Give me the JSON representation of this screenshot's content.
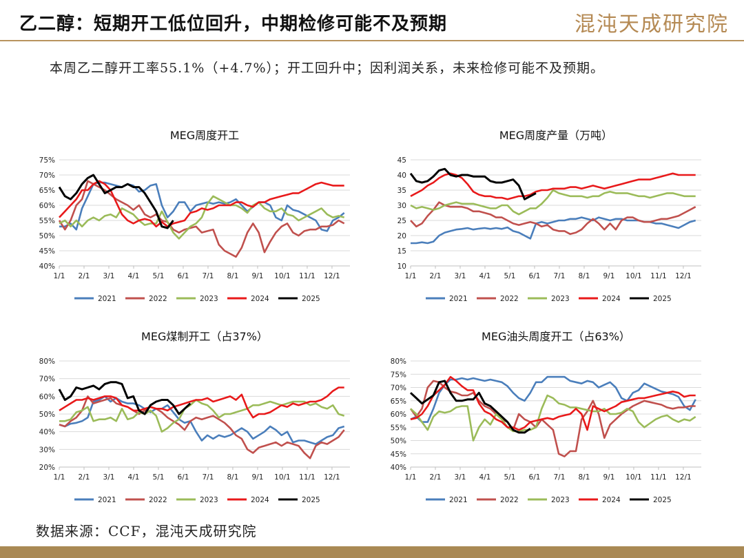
{
  "header": {
    "title": "乙二醇：短期开工低位回升，中期检修可能不及预期",
    "logo": "混沌天成研究院"
  },
  "summary": "本周乙二醇开工率55.1%（+4.7%）；开工回升中；因利润关系，未来检修可能不及预期。",
  "source": "数据来源：CCF，混沌天成研究院",
  "colors": {
    "2021": "#4a7ebb",
    "2022": "#c0504d",
    "2023": "#9bbb59",
    "2024": "#e8191a",
    "2025": "#000000",
    "accent": "#b8935e"
  },
  "chart_data": [
    {
      "type": "line",
      "title": "MEG周度开工",
      "x_ticks": [
        "1/1",
        "2/1",
        "3/1",
        "4/1",
        "5/1",
        "6/1",
        "7/1",
        "8/1",
        "9/1",
        "10/1",
        "11/1",
        "12/1"
      ],
      "y_ticks": [
        "40%",
        "45%",
        "50%",
        "55%",
        "60%",
        "65%",
        "70%",
        "75%"
      ],
      "ylim": [
        40,
        75
      ],
      "grid": true,
      "legend": "bottom",
      "series": [
        {
          "name": "2021",
          "values": [
            53,
            53,
            54,
            52,
            59,
            63,
            67,
            67.5,
            67.5,
            67,
            66.5,
            66,
            67,
            66.5,
            64.5,
            65,
            66.5,
            67,
            60,
            56,
            58,
            61,
            61,
            58,
            60,
            60.5,
            61,
            60.5,
            61,
            60.5,
            61,
            62,
            60,
            58,
            59.5,
            61,
            61,
            60,
            56,
            55,
            60,
            58.5,
            58,
            57,
            56,
            55,
            52,
            51.5,
            55,
            56,
            57.5
          ]
        },
        {
          "name": "2022",
          "values": [
            55,
            52,
            55,
            60,
            62,
            68,
            67,
            66,
            65,
            63.5,
            62,
            61,
            60,
            58.5,
            60,
            57,
            56,
            57,
            55,
            54.5,
            52,
            51,
            52,
            52.5,
            53,
            51,
            51.5,
            52,
            47,
            45,
            44,
            43,
            46,
            51,
            54,
            51,
            44.5,
            48,
            51,
            53,
            54,
            51,
            50,
            51.5,
            52,
            52,
            53,
            53,
            53.5,
            55,
            54
          ]
        },
        {
          "name": "2023",
          "values": [
            54,
            55,
            53,
            55,
            53,
            55,
            56,
            55,
            56.5,
            57,
            56,
            59,
            58,
            57,
            55,
            53.5,
            54,
            54,
            58,
            54.5,
            51,
            49,
            51,
            53,
            54,
            56,
            60.5,
            63,
            62,
            61,
            60,
            60,
            59,
            57.5,
            60,
            61,
            59,
            58,
            58,
            59,
            57,
            56.5,
            55,
            56,
            57,
            58,
            59,
            57,
            56,
            56.5,
            56
          ]
        },
        {
          "name": "2024",
          "values": [
            56,
            58,
            60,
            62,
            65,
            65,
            67,
            68,
            67,
            65,
            61,
            57,
            55,
            54,
            55,
            55.5,
            55,
            53,
            54.5,
            53,
            54,
            54.5,
            55,
            57.5,
            58,
            59,
            58.5,
            59,
            60,
            60,
            60,
            61,
            61,
            60,
            59.5,
            61,
            61,
            62,
            62.5,
            63,
            63.5,
            64,
            64,
            65,
            66,
            67,
            67.5,
            67,
            66.5,
            66.5,
            66.5
          ]
        },
        {
          "name": "2025",
          "values": [
            66,
            63,
            62,
            64,
            67,
            69,
            70,
            67,
            64,
            65,
            66,
            66,
            67,
            66,
            66,
            64,
            61,
            58,
            53,
            52.5,
            55
          ]
        }
      ]
    },
    {
      "type": "line",
      "title": "MEG周度产量（万吨）",
      "x_ticks": [
        "1/1",
        "2/1",
        "3/1",
        "4/1",
        "5/1",
        "6/1",
        "7/1",
        "8/1",
        "9/1",
        "10/1",
        "11/1",
        "12/1"
      ],
      "y_ticks": [
        "10",
        "15",
        "20",
        "25",
        "30",
        "35",
        "40",
        "45"
      ],
      "ylim": [
        10,
        45
      ],
      "grid": true,
      "legend": "bottom",
      "series": [
        {
          "name": "2021",
          "values": [
            17.5,
            17.5,
            17.8,
            17.5,
            18,
            20,
            21,
            21.5,
            22,
            22.2,
            22.5,
            22,
            22.3,
            22.5,
            22.2,
            22.5,
            22.2,
            22.7,
            21.5,
            21,
            20,
            19,
            24,
            24.5,
            24,
            24.5,
            25,
            25,
            25.5,
            25.5,
            26,
            25.5,
            25,
            26,
            25.5,
            25,
            25.5,
            25.5,
            25,
            25,
            25,
            24.5,
            24.5,
            24,
            24,
            23.5,
            23,
            22.5,
            23.5,
            24.5,
            25
          ]
        },
        {
          "name": "2022",
          "values": [
            25,
            23,
            24,
            26.5,
            28.5,
            31,
            30,
            29.5,
            29.5,
            29.5,
            29,
            28,
            28,
            27.5,
            27,
            26,
            26,
            25,
            24,
            23.5,
            24,
            24.5,
            24,
            23,
            23.5,
            22,
            21.5,
            21.5,
            20.5,
            21,
            22,
            24,
            25.5,
            24,
            22,
            24,
            22,
            25,
            26,
            26,
            25,
            24.5,
            24.5,
            25,
            25.5,
            25.5,
            26,
            26.5,
            27.5,
            28.5,
            29.5
          ]
        },
        {
          "name": "2023",
          "values": [
            30,
            29,
            29.5,
            29,
            28.5,
            29,
            30,
            30.5,
            31,
            30.5,
            30.5,
            30.5,
            30,
            29.5,
            29,
            29,
            30,
            30,
            28,
            27,
            28,
            29,
            29,
            30.5,
            32.5,
            35,
            34,
            33.5,
            33,
            33,
            33,
            32.5,
            33,
            33,
            34,
            34.5,
            34,
            34,
            34,
            33.5,
            33,
            33,
            32.5,
            33,
            33.5,
            34,
            34,
            33.5,
            33,
            33,
            33
          ]
        },
        {
          "name": "2024",
          "values": [
            33,
            34,
            35,
            36.5,
            37.5,
            39,
            40,
            40.5,
            40,
            39,
            37,
            34.5,
            33.5,
            33,
            33,
            32.5,
            32.5,
            32,
            32.5,
            33,
            33,
            33.5,
            34.5,
            35,
            35,
            35.5,
            35.5,
            35.5,
            36,
            36,
            35.5,
            36,
            36.5,
            36,
            35.5,
            36,
            36.5,
            37,
            37.5,
            38,
            38.5,
            38.5,
            38.5,
            39,
            39.5,
            40,
            40.5,
            40,
            40,
            40,
            40
          ]
        },
        {
          "name": "2025",
          "values": [
            40.5,
            38,
            37.5,
            38,
            39.5,
            41.5,
            42,
            40,
            39.5,
            40,
            40,
            39.5,
            39.5,
            39.5,
            38,
            37.5,
            37.5,
            38,
            38.5,
            36.5,
            32,
            33,
            34
          ]
        }
      ]
    },
    {
      "type": "line",
      "title": "MEG煤制开工（占37%）",
      "x_ticks": [
        "1/1",
        "2/1",
        "3/1",
        "4/1",
        "5/1",
        "6/1",
        "7/1",
        "8/1",
        "9/1",
        "10/1",
        "11/1",
        "12/1"
      ],
      "y_ticks": [
        "20%",
        "30%",
        "40%",
        "50%",
        "60%",
        "70%",
        "80%"
      ],
      "ylim": [
        20,
        80
      ],
      "grid": true,
      "legend": "bottom",
      "series": [
        {
          "name": "2021",
          "values": [
            44,
            43,
            44.5,
            45,
            46,
            48,
            57,
            58,
            60,
            57,
            59,
            57,
            56,
            56,
            55,
            53,
            51,
            53,
            53,
            55,
            51,
            47,
            45,
            46,
            40,
            35,
            38,
            36,
            38,
            37,
            38,
            40,
            42,
            40,
            36,
            38,
            40,
            43,
            41,
            38,
            40,
            34,
            35,
            35,
            34,
            33,
            35,
            37,
            38,
            42,
            43
          ]
        },
        {
          "name": "2022",
          "values": [
            44,
            43,
            46,
            48,
            52,
            60,
            56,
            57,
            58,
            59,
            56,
            55,
            54,
            52,
            50,
            52,
            54,
            53,
            51,
            48,
            46,
            44,
            41,
            46,
            48,
            47,
            48,
            49,
            47,
            45,
            42,
            38,
            36,
            30,
            28,
            31,
            32,
            33,
            34,
            32,
            34,
            33,
            32,
            28,
            25,
            32,
            34,
            33,
            35,
            37,
            41
          ]
        },
        {
          "name": "2023",
          "values": [
            46,
            46,
            47,
            51,
            52,
            54,
            46,
            47,
            47,
            48,
            46,
            53,
            47,
            48,
            51,
            50,
            52,
            49,
            40,
            42,
            45,
            47,
            53,
            55,
            58,
            56,
            55,
            52,
            48,
            50,
            50,
            51,
            52,
            53,
            55,
            55,
            56,
            57,
            56,
            55,
            56,
            57,
            57,
            57,
            55,
            56,
            54,
            53,
            55,
            50,
            49
          ]
        },
        {
          "name": "2024",
          "values": [
            52,
            54,
            56,
            58,
            58,
            59,
            58,
            59,
            60,
            60,
            59,
            55,
            54,
            52,
            52,
            53,
            54,
            53,
            53,
            52,
            54,
            55,
            56,
            57,
            58,
            58,
            59,
            57,
            58,
            59,
            60,
            58,
            61,
            53,
            48,
            50,
            50,
            51,
            53,
            55,
            54,
            56,
            55,
            56,
            57,
            57,
            58,
            60,
            63,
            65,
            65
          ]
        },
        {
          "name": "2025",
          "values": [
            64,
            58,
            60,
            65,
            64,
            65,
            66,
            64,
            67,
            68,
            68,
            67,
            59,
            60,
            52,
            50,
            55,
            57,
            58,
            58,
            55,
            50,
            53,
            56
          ]
        }
      ]
    },
    {
      "type": "line",
      "title": "MEG油头周度开工（占63%）",
      "x_ticks": [
        "1/1",
        "2/1",
        "3/1",
        "4/1",
        "5/1",
        "6/1",
        "7/1",
        "8/1",
        "9/1",
        "10/1",
        "11/1",
        "12/1"
      ],
      "y_ticks": [
        "40%",
        "45%",
        "50%",
        "55%",
        "60%",
        "65%",
        "70%",
        "75%",
        "80%"
      ],
      "ylim": [
        40,
        80
      ],
      "grid": true,
      "legend": "bottom",
      "series": [
        {
          "name": "2021",
          "values": [
            58,
            59,
            57,
            57,
            62,
            68,
            71,
            73,
            73,
            73.5,
            73,
            73.5,
            73,
            72.5,
            73,
            72.5,
            72,
            70.5,
            68,
            66,
            65,
            68,
            72,
            72,
            74,
            74,
            74,
            74,
            72.5,
            72,
            71.5,
            72.5,
            72,
            70,
            71,
            72,
            70,
            66,
            65,
            68,
            69,
            71.5,
            70.5,
            69.5,
            68.5,
            68,
            67.5,
            66.5,
            63,
            61.5,
            65.5
          ]
        },
        {
          "name": "2022",
          "values": [
            62,
            59,
            62,
            70,
            72.5,
            72,
            70,
            68.5,
            68,
            67,
            67,
            68,
            65,
            63,
            62,
            60,
            58,
            57,
            54,
            60,
            58,
            57,
            55,
            58,
            56,
            54,
            45,
            44,
            46,
            46,
            58,
            61,
            65,
            60,
            51,
            56,
            58,
            60,
            61.5,
            63,
            64,
            65,
            64.5,
            64,
            63.5,
            62.5,
            62,
            62.5,
            62.5,
            63,
            63
          ]
        },
        {
          "name": "2023",
          "values": [
            62,
            60,
            57,
            54,
            59,
            61,
            60.5,
            61,
            62.5,
            63,
            63,
            50,
            55,
            58,
            56,
            60,
            58,
            55,
            53.5,
            53.5,
            54,
            54,
            55,
            62,
            67,
            66,
            64,
            63.5,
            62.5,
            62.5,
            62,
            61.5,
            61,
            61,
            62,
            60,
            60,
            60.5,
            62,
            61,
            57,
            55,
            56.5,
            58,
            59,
            59.5,
            58,
            57,
            58,
            57.5,
            59
          ]
        },
        {
          "name": "2024",
          "values": [
            58,
            58.5,
            60,
            63,
            67,
            69,
            71,
            74,
            72.5,
            70.5,
            69,
            69,
            64,
            61,
            60,
            58,
            57,
            55,
            55,
            54,
            55,
            57,
            57.5,
            58,
            58.5,
            58,
            59,
            59.5,
            60,
            62,
            60,
            54,
            63,
            62,
            61,
            62,
            63,
            64.5,
            65,
            65.5,
            66,
            66,
            66.5,
            67,
            67.5,
            68,
            68.5,
            68,
            66.5,
            67,
            67
          ]
        },
        {
          "name": "2025",
          "values": [
            68,
            66,
            64,
            65.5,
            67,
            72,
            72.5,
            68,
            65,
            65,
            65.5,
            65.5,
            68,
            64,
            63,
            61,
            59,
            57,
            54,
            53,
            53,
            54.5
          ]
        }
      ]
    }
  ]
}
